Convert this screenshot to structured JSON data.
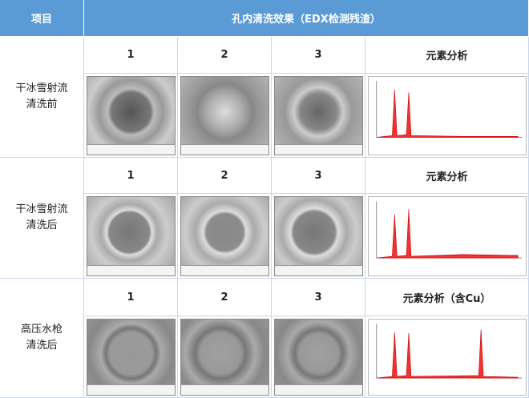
{
  "header": {
    "item": "项目",
    "effect": "孔内清洗效果（EDX检测残渣）"
  },
  "groups": [
    {
      "label": [
        "干冰雪射流",
        "清洗前"
      ],
      "columns": [
        "1",
        "2",
        "3",
        "元素分析"
      ]
    },
    {
      "label": [
        "干冰雪射流",
        "清洗后"
      ],
      "columns": [
        "1",
        "2",
        "3",
        "元素分析"
      ]
    },
    {
      "label": [
        "高压水枪",
        "清洗后"
      ],
      "columns": [
        "1",
        "2",
        "3",
        "元素分析（含Cu）"
      ]
    }
  ]
}
